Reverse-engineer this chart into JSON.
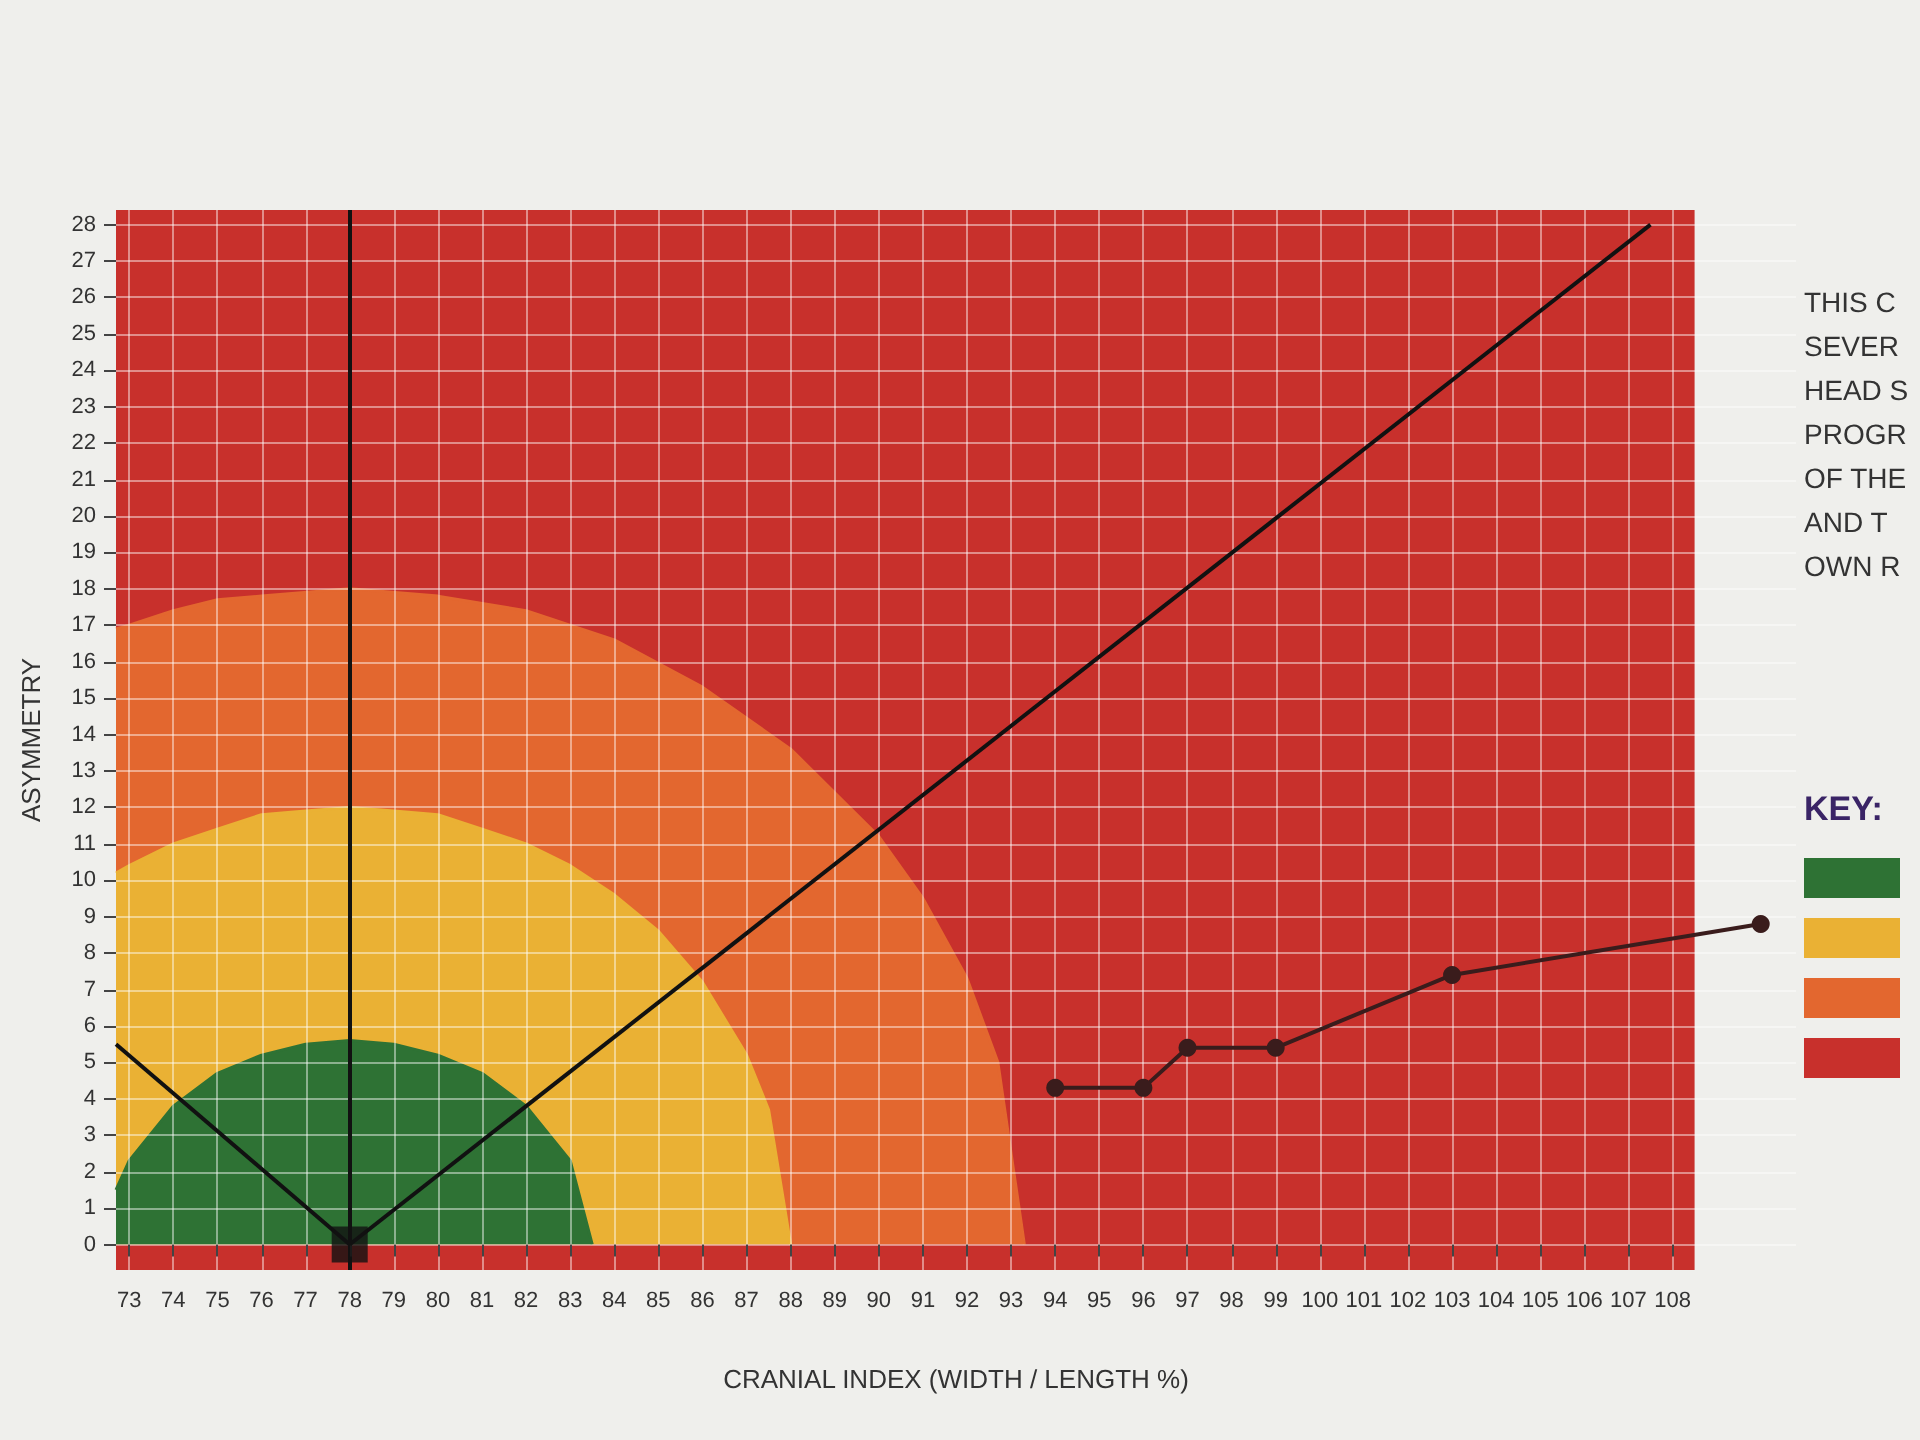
{
  "chart_data": {
    "type": "line",
    "xlabel": "CRANIAL INDEX (WIDTH / LENGTH %)",
    "ylabel": "ASYMMETRY",
    "xlim": [
      72.7,
      110.8
    ],
    "ylim": [
      -0.7,
      28.4
    ],
    "xticks": [
      73,
      74,
      75,
      76,
      77,
      78,
      79,
      80,
      81,
      82,
      83,
      84,
      85,
      86,
      87,
      88,
      89,
      90,
      91,
      92,
      93,
      94,
      95,
      96,
      97,
      98,
      99,
      100,
      101,
      102,
      103,
      104,
      105,
      106,
      107,
      108
    ],
    "yticks": [
      0,
      1,
      2,
      3,
      4,
      5,
      6,
      7,
      8,
      9,
      10,
      11,
      12,
      13,
      14,
      15,
      16,
      17,
      18,
      19,
      20,
      21,
      22,
      23,
      24,
      25,
      26,
      27,
      28
    ],
    "grid": true,
    "bands": [
      {
        "axis": "x",
        "from": 72.7,
        "to": 108.5,
        "color": "#c8302c"
      }
    ],
    "ref_lines": [
      {
        "axis": "x",
        "value": 78,
        "color": "#111111"
      }
    ],
    "series": [
      {
        "type": "area",
        "color": "#e3672f",
        "x": [
          72.7,
          73,
          74,
          75,
          76,
          78,
          80,
          82,
          84,
          86,
          88,
          90,
          91,
          92,
          92.7,
          93.3
        ],
        "values": [
          16.9,
          17.0,
          17.4,
          17.7,
          17.8,
          18.0,
          17.8,
          17.4,
          16.6,
          15.3,
          13.6,
          11.2,
          9.5,
          7.3,
          5.0,
          0
        ]
      },
      {
        "type": "area",
        "color": "#eab134",
        "x": [
          72.7,
          73,
          74,
          75,
          76,
          77,
          78,
          79,
          80,
          81,
          82,
          83,
          84,
          85,
          86,
          87,
          87.5,
          88
        ],
        "values": [
          10.2,
          10.4,
          11.0,
          11.4,
          11.8,
          11.9,
          12.0,
          11.9,
          11.8,
          11.4,
          11.0,
          10.4,
          9.6,
          8.6,
          7.2,
          5.2,
          3.7,
          0
        ]
      },
      {
        "type": "area",
        "color": "#2e7234",
        "x": [
          72.7,
          73,
          74,
          75,
          76,
          77,
          78,
          79,
          80,
          81,
          82,
          83,
          83.5
        ],
        "values": [
          1.5,
          2.3,
          3.8,
          4.7,
          5.2,
          5.5,
          5.6,
          5.5,
          5.2,
          4.7,
          3.8,
          2.3,
          0
        ]
      },
      {
        "type": "line",
        "color": "#111111",
        "marker": "none",
        "x": [
          78,
          107.5
        ],
        "values": [
          0,
          28
        ]
      },
      {
        "type": "line",
        "color": "#111111",
        "marker": "none",
        "x": [
          72.7,
          78
        ],
        "values": [
          5.5,
          0
        ]
      },
      {
        "type": "scatter",
        "color": "#111111",
        "marker": "square",
        "x": [
          78
        ],
        "values": [
          0
        ]
      },
      {
        "color": "#3a1c1c",
        "marker": "circle",
        "x": [
          94,
          96,
          97,
          99,
          103,
          110
        ],
        "values": [
          4.3,
          4.3,
          5.4,
          5.4,
          7.4,
          8.8
        ]
      }
    ],
    "annotations": [
      "THIS C",
      "SEVER",
      "HEAD S",
      "PROGR",
      "OF THE",
      "AND T",
      "OWN R",
      "KEY:"
    ]
  }
}
